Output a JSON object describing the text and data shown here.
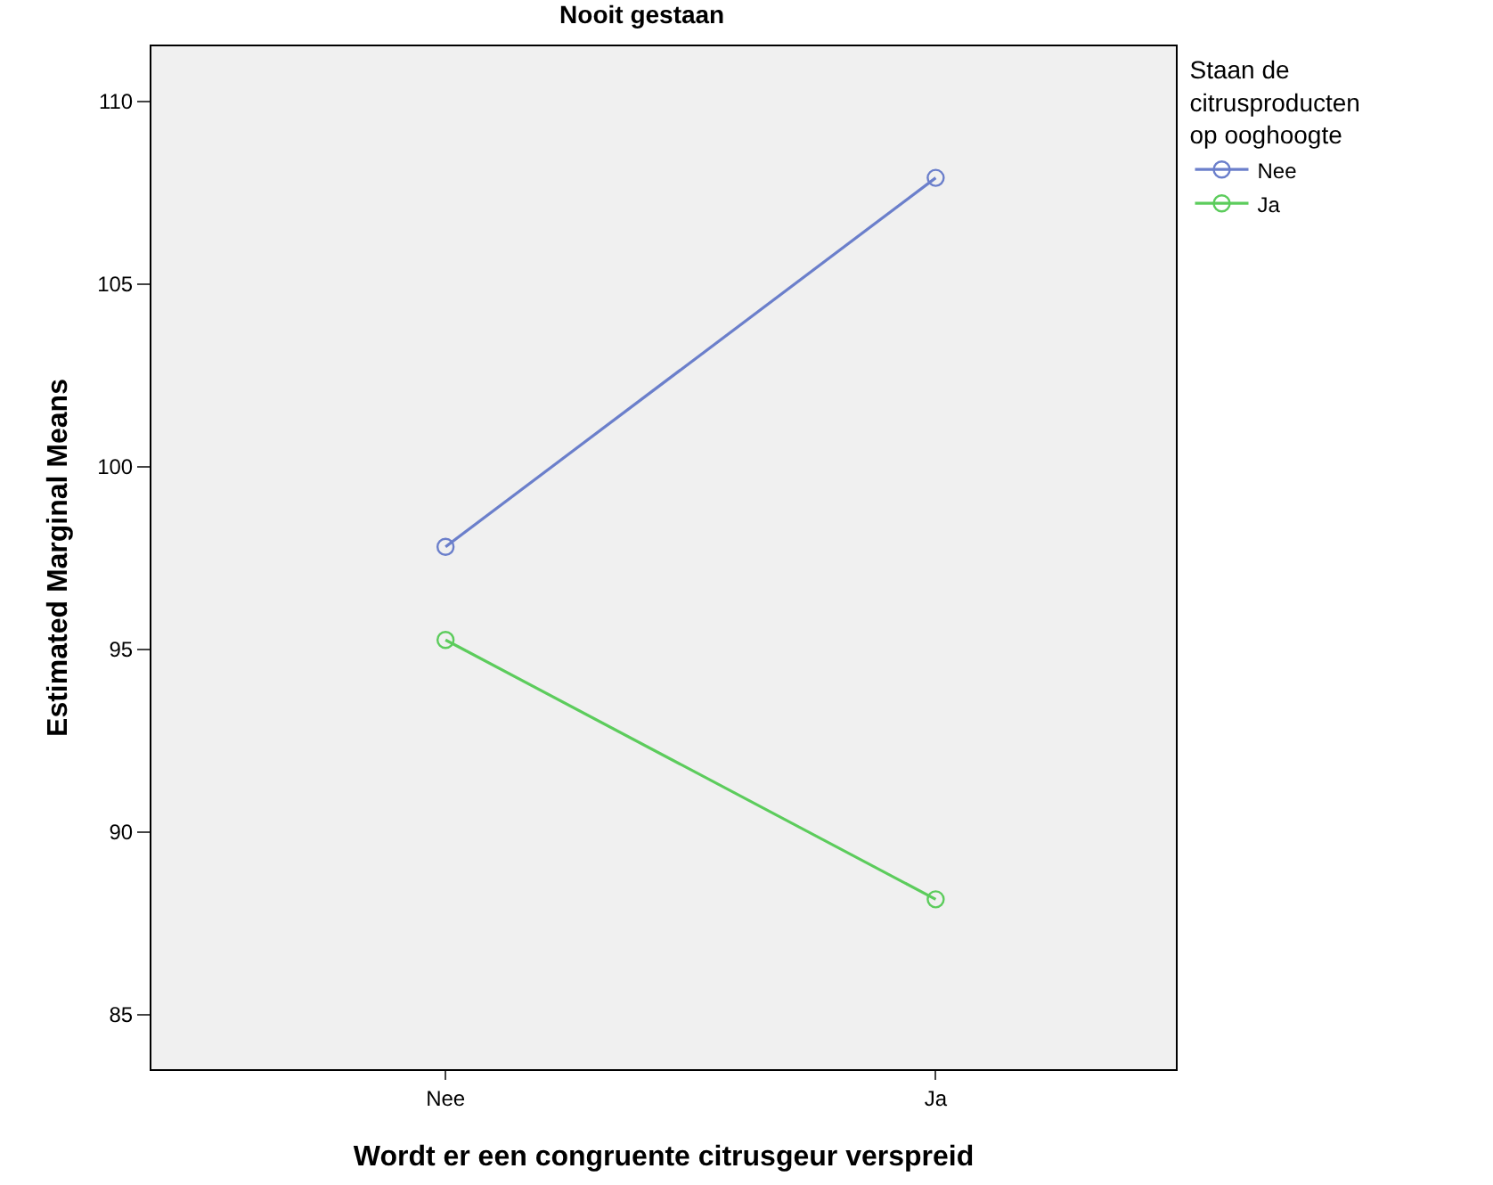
{
  "chart_data": {
    "type": "line",
    "title": "Nooit gestaan",
    "xlabel": "Wordt er een congruente citrusgeur verspreid",
    "ylabel": "Estimated Marginal Means",
    "legend_title": "Staan de citrusproducten op ooghoogte",
    "categories": [
      "Nee",
      "Ja"
    ],
    "series": [
      {
        "name": "Nee",
        "color": "#6b7fcb",
        "values": [
          97.8,
          107.9
        ]
      },
      {
        "name": "Ja",
        "color": "#5ccc5c",
        "values": [
          95.25,
          88.15
        ]
      }
    ],
    "ylim": [
      83.5,
      111.5
    ],
    "yticks": [
      85,
      90,
      95,
      100,
      105,
      110
    ],
    "grid": false,
    "legend": "right",
    "marker": "circle",
    "line_style": "solid"
  }
}
